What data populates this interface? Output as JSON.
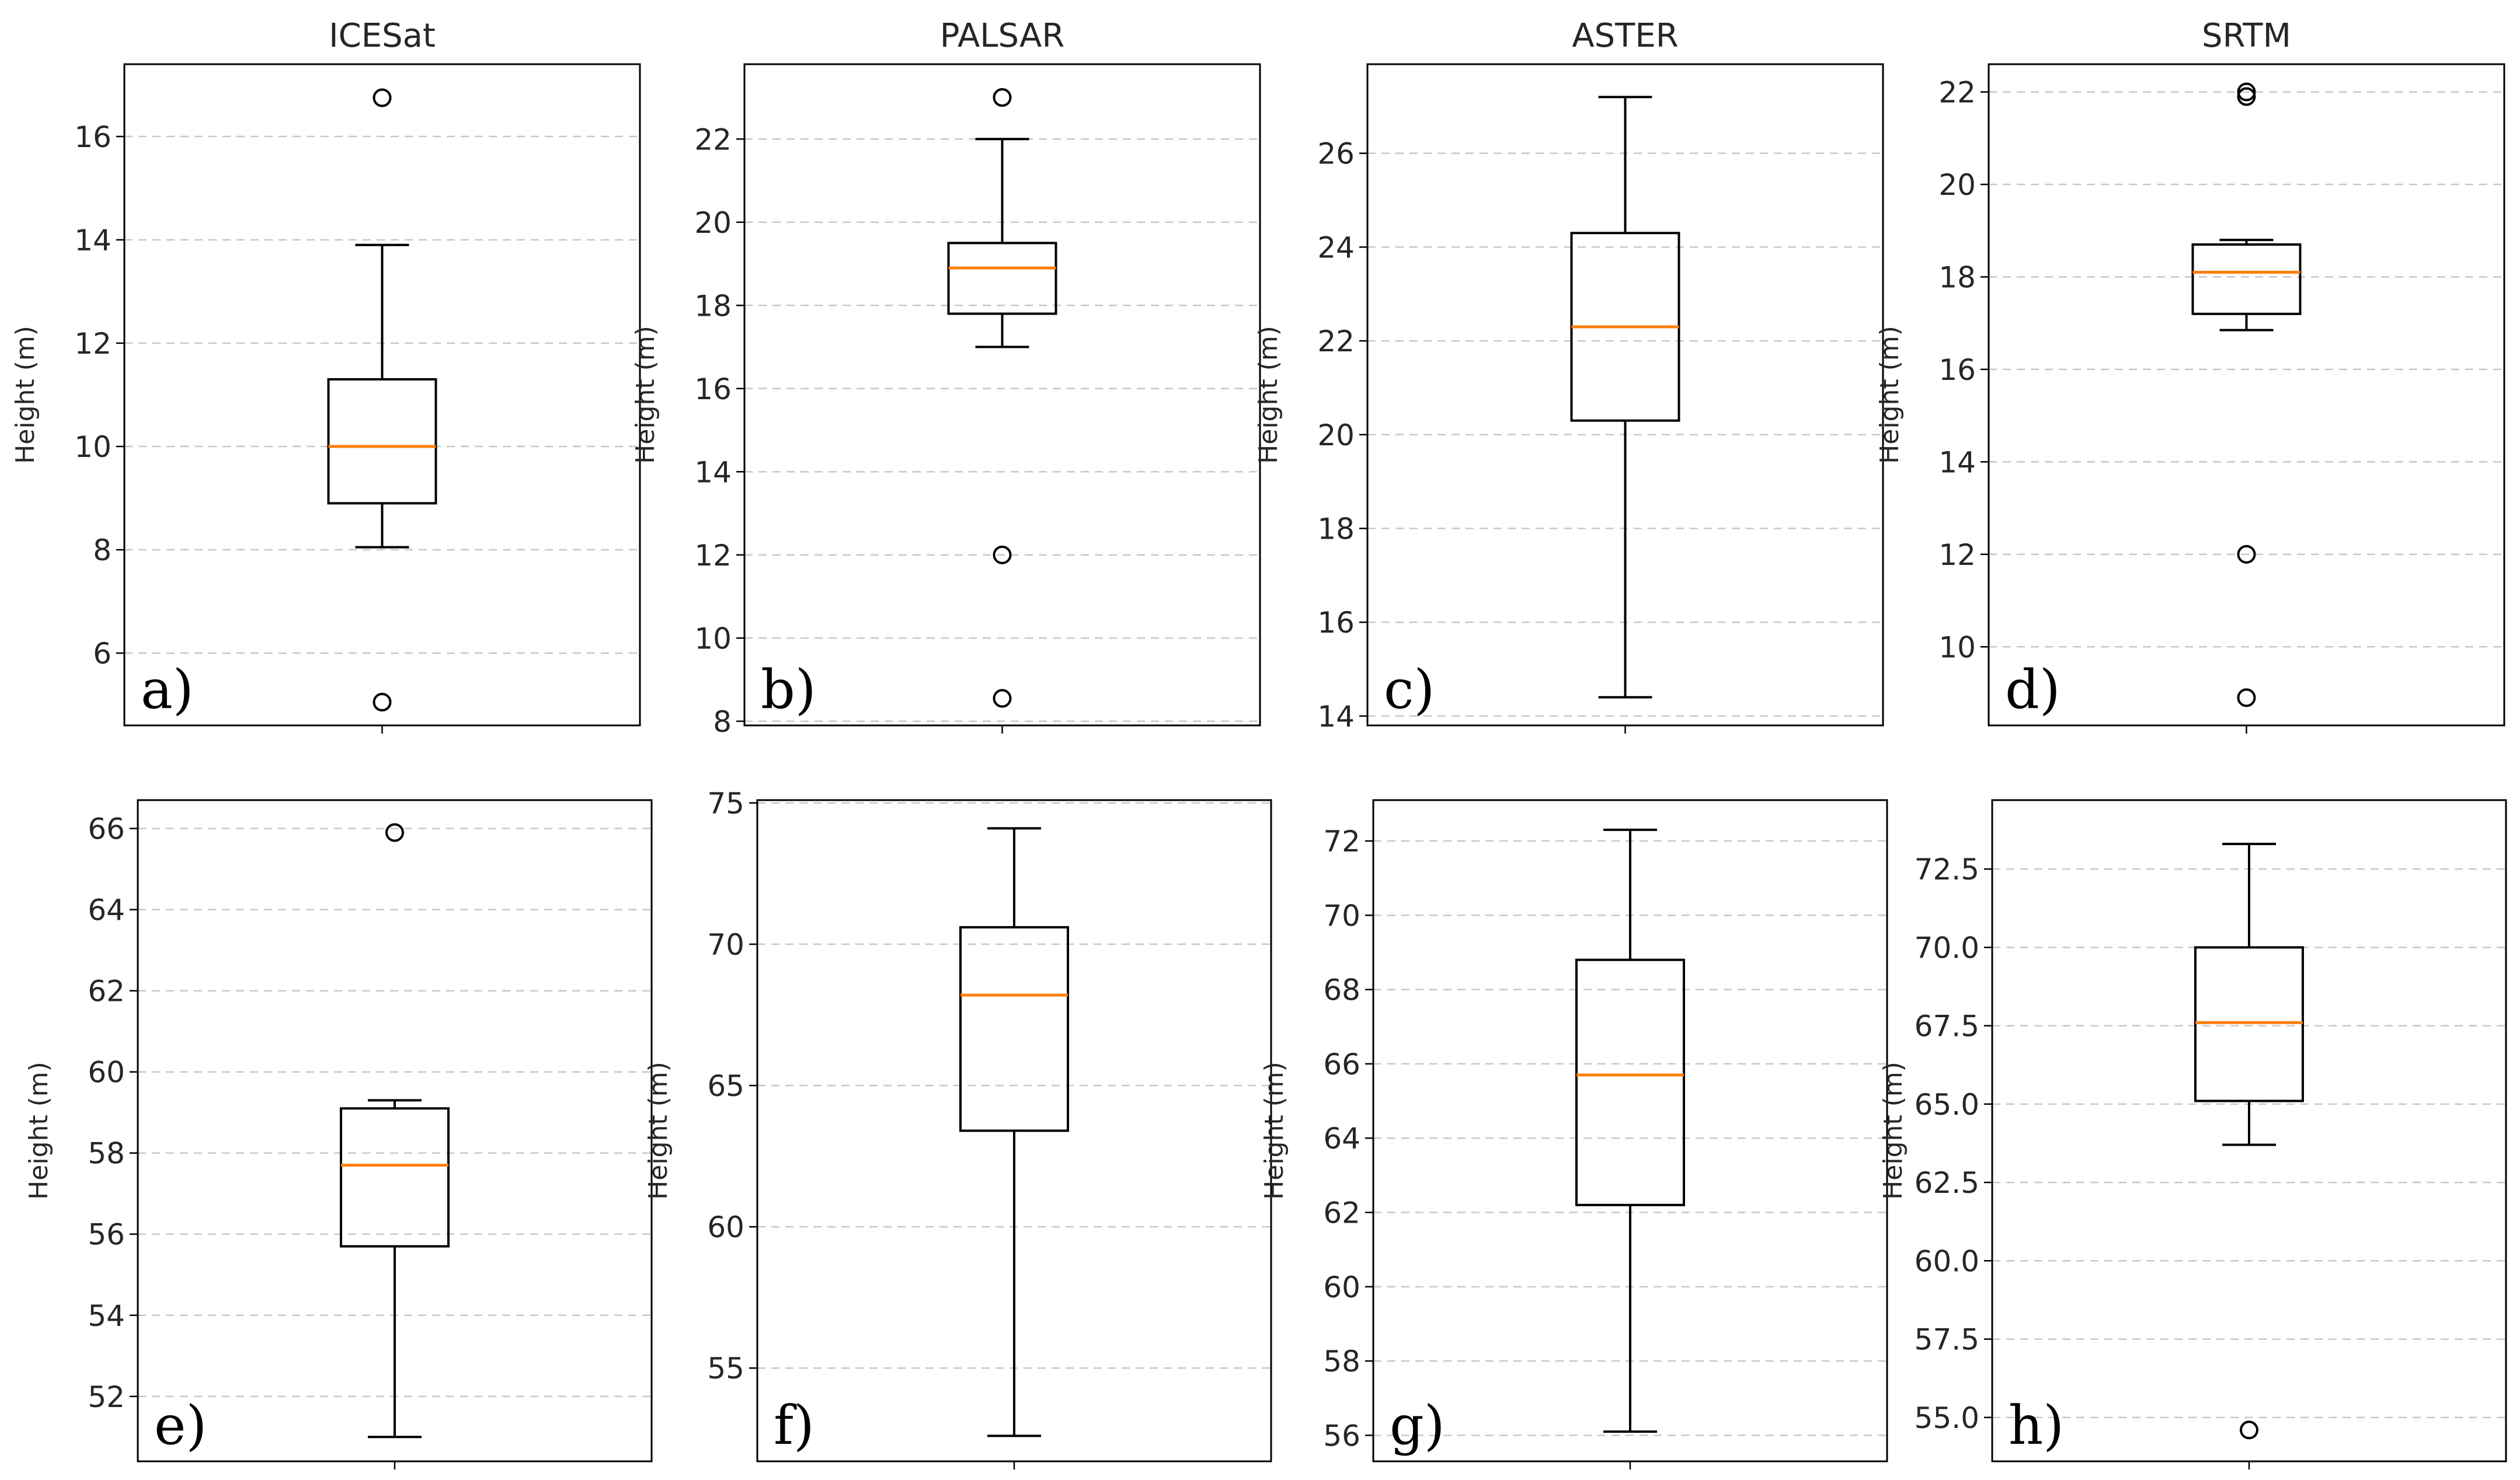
{
  "figure": {
    "ylabel": "Height (m)"
  },
  "colors": {
    "median": "#ff7f0e",
    "box": "#000000",
    "grid": "#c8c8c8",
    "text": "#262626"
  },
  "chart_data": [
    {
      "type": "box",
      "panel": "a)",
      "title": "ICESat",
      "ylabel": "Height (m)",
      "ylim": [
        4.6,
        17.4
      ],
      "yticks": [
        6,
        8,
        10,
        12,
        14,
        16
      ],
      "ytick_labels": [
        "6",
        "8",
        "10",
        "12",
        "14",
        "16"
      ],
      "whisker_low": 8.05,
      "q1": 8.9,
      "median": 10.0,
      "q3": 11.3,
      "whisker_high": 13.9,
      "outliers": [
        5.05,
        16.75
      ]
    },
    {
      "type": "box",
      "panel": "b)",
      "title": "PALSAR",
      "ylabel": "Height (m)",
      "ylim": [
        7.9,
        23.8
      ],
      "yticks": [
        8,
        10,
        12,
        14,
        16,
        18,
        20,
        22
      ],
      "ytick_labels": [
        "8",
        "10",
        "12",
        "14",
        "16",
        "18",
        "20",
        "22"
      ],
      "whisker_low": 17.0,
      "q1": 17.8,
      "median": 18.9,
      "q3": 19.5,
      "whisker_high": 22.0,
      "outliers": [
        8.55,
        12.0,
        23.0
      ]
    },
    {
      "type": "box",
      "panel": "c)",
      "title": "ASTER",
      "ylabel": "Height (m)",
      "ylim": [
        13.8,
        27.9
      ],
      "yticks": [
        14,
        16,
        18,
        20,
        22,
        24,
        26
      ],
      "ytick_labels": [
        "14",
        "16",
        "18",
        "20",
        "22",
        "24",
        "26"
      ],
      "whisker_low": 14.4,
      "q1": 20.3,
      "median": 22.3,
      "q3": 24.3,
      "whisker_high": 27.2,
      "outliers": []
    },
    {
      "type": "box",
      "panel": "d)",
      "title": "SRTM",
      "ylabel": "Height (m)",
      "ylim": [
        8.3,
        22.6
      ],
      "yticks": [
        10,
        12,
        14,
        16,
        18,
        20,
        22
      ],
      "ytick_labels": [
        "10",
        "12",
        "14",
        "16",
        "18",
        "20",
        "22"
      ],
      "whisker_low": 16.85,
      "q1": 17.2,
      "median": 18.1,
      "q3": 18.7,
      "whisker_high": 18.8,
      "outliers": [
        8.9,
        12.0,
        21.9,
        22.0
      ]
    },
    {
      "type": "box",
      "panel": "e)",
      "title": "",
      "ylabel": "Height (m)",
      "ylim": [
        50.4,
        66.7
      ],
      "yticks": [
        52,
        54,
        56,
        58,
        60,
        62,
        64,
        66
      ],
      "ytick_labels": [
        "52",
        "54",
        "56",
        "58",
        "60",
        "62",
        "64",
        "66"
      ],
      "whisker_low": 51.0,
      "q1": 55.7,
      "median": 57.7,
      "q3": 59.1,
      "whisker_high": 59.3,
      "outliers": [
        65.9
      ]
    },
    {
      "type": "box",
      "panel": "f)",
      "title": "",
      "ylabel": "Height (m)",
      "ylim": [
        51.7,
        75.1
      ],
      "yticks": [
        55,
        60,
        65,
        70,
        75
      ],
      "ytick_labels": [
        "55",
        "60",
        "65",
        "70",
        "75"
      ],
      "whisker_low": 52.6,
      "q1": 63.4,
      "median": 68.2,
      "q3": 70.6,
      "whisker_high": 74.1,
      "outliers": []
    },
    {
      "type": "box",
      "panel": "g)",
      "title": "",
      "ylabel": "Height (m)",
      "ylim": [
        55.3,
        73.1
      ],
      "yticks": [
        56,
        58,
        60,
        62,
        64,
        66,
        68,
        70,
        72
      ],
      "ytick_labels": [
        "56",
        "58",
        "60",
        "62",
        "64",
        "66",
        "68",
        "70",
        "72"
      ],
      "whisker_low": 56.1,
      "q1": 62.2,
      "median": 65.7,
      "q3": 68.8,
      "whisker_high": 72.3,
      "outliers": []
    },
    {
      "type": "box",
      "panel": "h)",
      "title": "",
      "ylabel": "Height (m)",
      "ylim": [
        53.6,
        74.7
      ],
      "yticks": [
        55.0,
        57.5,
        60.0,
        62.5,
        65.0,
        67.5,
        70.0,
        72.5
      ],
      "ytick_labels": [
        "55.0",
        "57.5",
        "60.0",
        "62.5",
        "65.0",
        "67.5",
        "70.0",
        "72.5"
      ],
      "whisker_low": 63.7,
      "q1": 65.1,
      "median": 67.6,
      "q3": 70.0,
      "whisker_high": 73.3,
      "outliers": [
        54.6
      ]
    }
  ]
}
